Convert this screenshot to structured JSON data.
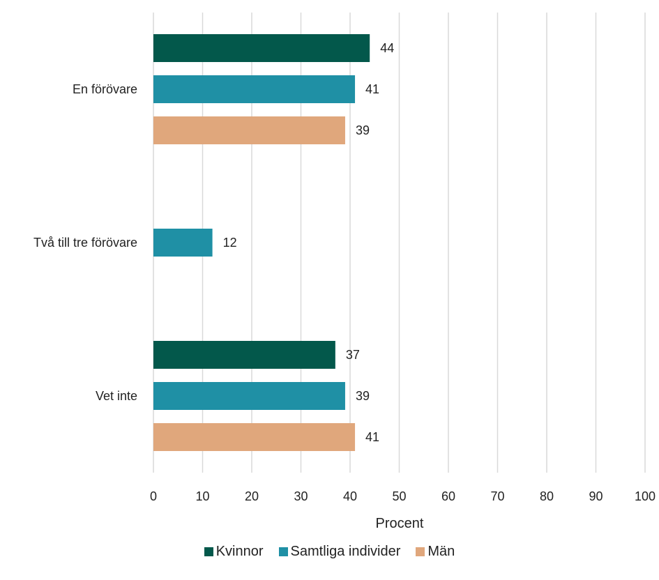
{
  "chart_data": {
    "type": "bar",
    "orientation": "horizontal",
    "categories": [
      "En förövare",
      "Två till tre förövare",
      "Vet inte"
    ],
    "series": [
      {
        "name": "Kvinnor",
        "color": "#03584b",
        "values": [
          44,
          null,
          37
        ]
      },
      {
        "name": "Samtliga individer",
        "color": "#1f90a5",
        "values": [
          41,
          12,
          39
        ]
      },
      {
        "name": "Män",
        "color": "#e0a77c",
        "values": [
          39,
          null,
          41
        ]
      }
    ],
    "xlabel": "Procent",
    "xlim": [
      0,
      100
    ],
    "xticks": [
      "0",
      "10",
      "20",
      "30",
      "40",
      "50",
      "60",
      "70",
      "80",
      "90",
      "100"
    ],
    "grid": true,
    "legend_position": "bottom"
  }
}
